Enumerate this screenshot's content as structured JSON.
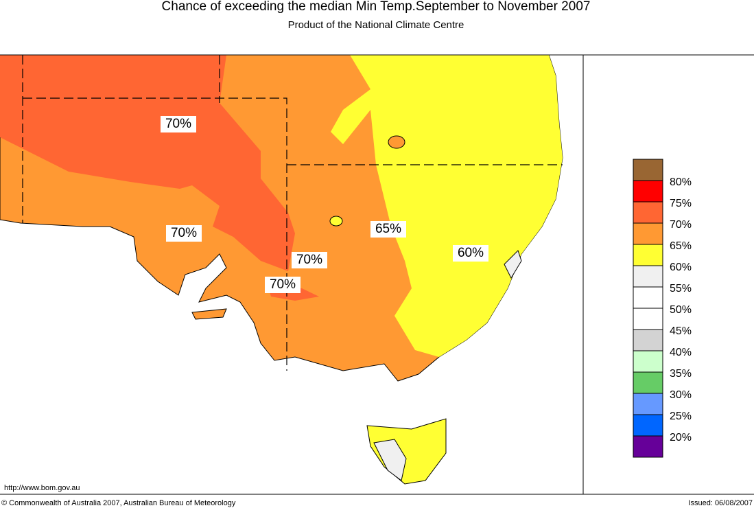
{
  "header": {
    "title": "Chance of exceeding the median Min Temp.September to November 2007",
    "subtitle": "Product of the National Climate Centre"
  },
  "map": {
    "labels": [
      "70%",
      "70%",
      "65%",
      "70%",
      "70%",
      "60%"
    ]
  },
  "legend": {
    "colors": [
      "#996633",
      "#ff0000",
      "#ff6633",
      "#ff9933",
      "#ffff33",
      "#f0f0f0",
      "#ffffff",
      "#ffffff",
      "#d3d3d3",
      "#ccffcc",
      "#66cc66",
      "#6699ff",
      "#0066ff",
      "#660099"
    ],
    "labels": [
      "80%",
      "75%",
      "70%",
      "65%",
      "60%",
      "55%",
      "50%",
      "45%",
      "40%",
      "35%",
      "30%",
      "25%",
      "20%"
    ]
  },
  "footer": {
    "url": "http://www.bom.gov.au",
    "copyright": "© Commonwealth of Australia 2007, Australian Bureau of Meteorology",
    "issued": "Issued: 06/08/2007"
  }
}
